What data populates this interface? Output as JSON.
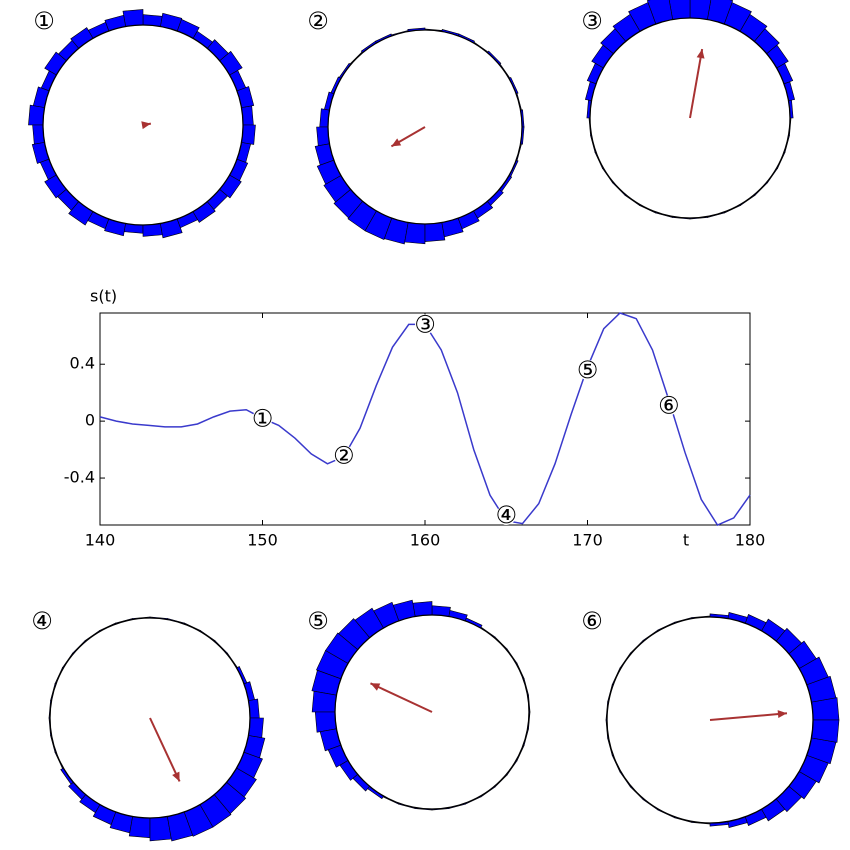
{
  "chart_data": [
    {
      "type": "polar_histogram",
      "title": "①",
      "color": "#0000ff",
      "rlim": [
        0,
        25
      ],
      "values": [
        10,
        12,
        9,
        14,
        11,
        8,
        12,
        13,
        10,
        15,
        11,
        9,
        12,
        10,
        13,
        8,
        11,
        14,
        10,
        12,
        9,
        13,
        11,
        15,
        10,
        12,
        8,
        11,
        14,
        9,
        12,
        10,
        13,
        11,
        9,
        12
      ],
      "arrow": {
        "angle": 10,
        "length": 0.08,
        "color": "#a83232"
      }
    },
    {
      "type": "polar_histogram",
      "title": "②",
      "color": "#0000ff",
      "rlim": [
        0,
        25
      ],
      "values": [
        2,
        1,
        2,
        1,
        2,
        1,
        2,
        2,
        1,
        2,
        1,
        2,
        2,
        1,
        2,
        3,
        5,
        8,
        11,
        14,
        17,
        19,
        21,
        22,
        22,
        21,
        19,
        17,
        14,
        11,
        8,
        5,
        3,
        2,
        1,
        2
      ],
      "arrow": {
        "angle": 210,
        "length": 0.4,
        "color": "#a83232"
      }
    },
    {
      "type": "polar_histogram",
      "title": "③",
      "color": "#0000ff",
      "rlim": [
        0,
        25
      ],
      "values": [
        3,
        6,
        9,
        13,
        16,
        19,
        22,
        24,
        25,
        25,
        24,
        22,
        19,
        16,
        13,
        9,
        6,
        3,
        1,
        1,
        1,
        1,
        1,
        1,
        1,
        1,
        1,
        1,
        1,
        1,
        1,
        1,
        1,
        1,
        1,
        1
      ],
      "arrow": {
        "angle": 80,
        "length": 0.7,
        "color": "#a83232"
      }
    },
    {
      "type": "line",
      "x_label": "t",
      "y_label": "s(t)",
      "color": "#3a3acc",
      "xlim": [
        140,
        180
      ],
      "ylim": [
        -0.73,
        0.76
      ],
      "xticks": [
        140,
        150,
        160,
        170,
        180
      ],
      "yticks": [
        -0.4,
        0,
        0.4
      ],
      "x": [
        140,
        141,
        142,
        143,
        144,
        145,
        146,
        147,
        148,
        149,
        150,
        151,
        152,
        153,
        154,
        155,
        156,
        157,
        158,
        159,
        160,
        161,
        162,
        163,
        164,
        165,
        166,
        167,
        168,
        169,
        170,
        171,
        172,
        173,
        174,
        175,
        176,
        177,
        178,
        179,
        180
      ],
      "values": [
        0.03,
        0.0,
        -0.02,
        -0.03,
        -0.04,
        -0.04,
        -0.02,
        0.03,
        0.07,
        0.08,
        0.02,
        -0.03,
        -0.12,
        -0.23,
        -0.3,
        -0.25,
        -0.05,
        0.25,
        0.52,
        0.68,
        0.68,
        0.5,
        0.2,
        -0.2,
        -0.52,
        -0.7,
        -0.72,
        -0.58,
        -0.3,
        0.05,
        0.38,
        0.65,
        0.76,
        0.72,
        0.5,
        0.15,
        -0.22,
        -0.55,
        -0.73,
        -0.68,
        -0.52
      ],
      "annotations": [
        {
          "x": 150,
          "y": 0.02,
          "label": "①"
        },
        {
          "x": 155,
          "y": -0.24,
          "label": "②"
        },
        {
          "x": 160,
          "y": 0.68,
          "label": "③"
        },
        {
          "x": 165,
          "y": -0.66,
          "label": "④"
        },
        {
          "x": 170,
          "y": 0.36,
          "label": "⑤"
        },
        {
          "x": 175,
          "y": 0.11,
          "label": "⑥"
        }
      ]
    },
    {
      "type": "polar_histogram",
      "title": "④",
      "color": "#0000ff",
      "rlim": [
        0,
        25
      ],
      "values": [
        9,
        6,
        3,
        1,
        1,
        1,
        1,
        1,
        1,
        1,
        1,
        1,
        1,
        1,
        1,
        1,
        1,
        1,
        1,
        1,
        1,
        3,
        6,
        9,
        13,
        16,
        19,
        22,
        24,
        25,
        25,
        24,
        22,
        19,
        16,
        13
      ],
      "arrow": {
        "angle": 295,
        "length": 0.7,
        "color": "#a83232"
      }
    },
    {
      "type": "polar_histogram",
      "title": "⑤",
      "color": "#0000ff",
      "rlim": [
        0,
        25
      ],
      "values": [
        1,
        1,
        1,
        1,
        1,
        1,
        3,
        6,
        9,
        13,
        16,
        19,
        22,
        24,
        25,
        25,
        24,
        22,
        19,
        16,
        13,
        9,
        6,
        3,
        1,
        1,
        1,
        1,
        1,
        1,
        1,
        1,
        1,
        1,
        1,
        1
      ],
      "arrow": {
        "angle": 155,
        "length": 0.7,
        "color": "#a83232"
      }
    },
    {
      "type": "polar_histogram",
      "title": "⑥",
      "color": "#0000ff",
      "rlim": [
        0,
        25
      ],
      "values": [
        25,
        24,
        22,
        19,
        16,
        13,
        9,
        6,
        3,
        1,
        1,
        1,
        1,
        1,
        1,
        1,
        1,
        1,
        1,
        1,
        1,
        1,
        1,
        1,
        1,
        1,
        1,
        3,
        6,
        9,
        13,
        16,
        19,
        22,
        24,
        25
      ],
      "arrow": {
        "angle": 5,
        "length": 0.75,
        "color": "#a83232"
      }
    }
  ]
}
